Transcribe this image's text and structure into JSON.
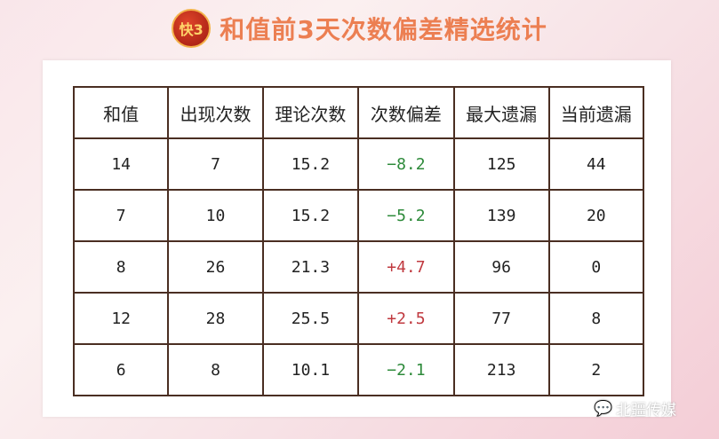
{
  "title": "和值前3天次数偏差精选统计",
  "logo_text": "快3",
  "table": {
    "headers": [
      "和值",
      "出现次数",
      "理论次数",
      "次数偏差",
      "最大遗漏",
      "当前遗漏"
    ],
    "rows": [
      [
        "14",
        "7",
        "15.2",
        "−8.2",
        "125",
        "44"
      ],
      [
        "7",
        "10",
        "15.2",
        "−5.2",
        "139",
        "20"
      ],
      [
        "8",
        "26",
        "21.3",
        "+4.7",
        "96",
        "0"
      ],
      [
        "12",
        "28",
        "25.5",
        "+2.5",
        "77",
        "8"
      ],
      [
        "6",
        "8",
        "10.1",
        "−2.1",
        "213",
        "2"
      ]
    ]
  },
  "colors": {
    "negative": "#2d8a3a",
    "positive": "#c0393f",
    "title": "#ec7f52"
  },
  "watermark": {
    "icon": "wechat-icon",
    "text": "北疆传媒"
  }
}
